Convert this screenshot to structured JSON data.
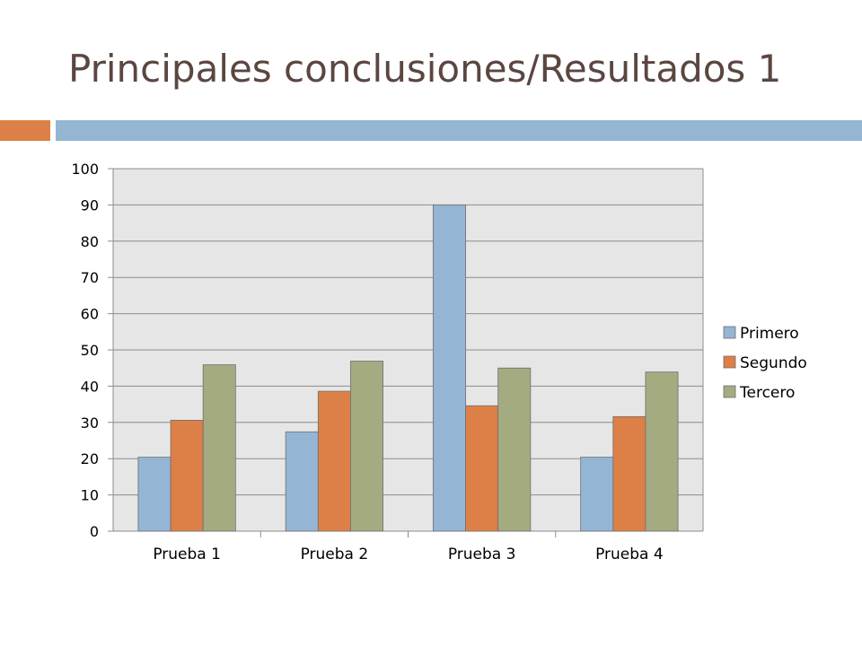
{
  "slide": {
    "title": "Principales conclusiones/Resultados 1",
    "title_color": "#5b4640",
    "accent_orange": "#dd8047",
    "accent_blue": "#94b6d2"
  },
  "chart_data": {
    "type": "bar",
    "title": "",
    "xlabel": "",
    "ylabel": "",
    "categories": [
      "Prueba 1",
      "Prueba 2",
      "Prueba 3",
      "Prueba 4"
    ],
    "series": [
      {
        "name": "Primero",
        "color": "#95b5d5",
        "values": [
          20.4,
          27.4,
          90,
          20.4
        ]
      },
      {
        "name": "Segundo",
        "color": "#dd8047",
        "values": [
          30.6,
          38.6,
          34.6,
          31.6
        ]
      },
      {
        "name": "Tercero",
        "color": "#a5ab81",
        "values": [
          45.9,
          46.9,
          45,
          43.9
        ]
      }
    ],
    "ylim": [
      0,
      100
    ],
    "yticks": [
      0,
      10,
      20,
      30,
      40,
      50,
      60,
      70,
      80,
      90,
      100
    ],
    "grid": true,
    "plot_background": "#e6e6e6",
    "legend_position": "right"
  }
}
